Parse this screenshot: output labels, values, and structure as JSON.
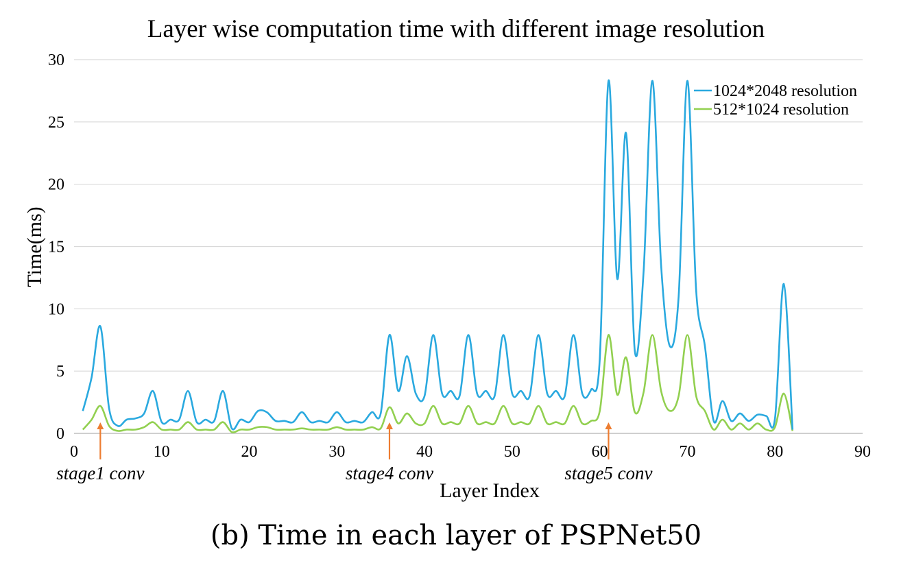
{
  "caption": "(b) Time in each layer of PSPNet50",
  "chart_data": {
    "type": "line",
    "title": "Layer wise computation time with different image resolution",
    "xlabel": "Layer Index",
    "ylabel": "Time(ms)",
    "xlim": [
      0,
      90
    ],
    "ylim": [
      0,
      30
    ],
    "xticks": [
      0,
      10,
      20,
      30,
      40,
      50,
      60,
      70,
      80,
      90
    ],
    "yticks": [
      0,
      5,
      10,
      15,
      20,
      25,
      30
    ],
    "grid": "horizontal",
    "legend_position": "top-right",
    "x": [
      1,
      2,
      3,
      4,
      5,
      6,
      7,
      8,
      9,
      10,
      11,
      12,
      13,
      14,
      15,
      16,
      17,
      18,
      19,
      20,
      21,
      22,
      23,
      24,
      25,
      26,
      27,
      28,
      29,
      30,
      31,
      32,
      33,
      34,
      35,
      36,
      37,
      38,
      39,
      40,
      41,
      42,
      43,
      44,
      45,
      46,
      47,
      48,
      49,
      50,
      51,
      52,
      53,
      54,
      55,
      56,
      57,
      58,
      59,
      60,
      61,
      62,
      63,
      64,
      65,
      66,
      67,
      68,
      69,
      70,
      71,
      72,
      73,
      74,
      75,
      76,
      77,
      78,
      79,
      80,
      81,
      82
    ],
    "series": [
      {
        "name": "1024*2048 resolution",
        "color": "#2aa9df",
        "values": [
          1.8,
          4.5,
          8.6,
          2.0,
          0.6,
          1.1,
          1.2,
          1.6,
          3.4,
          0.9,
          1.1,
          1.1,
          3.4,
          0.9,
          1.1,
          1.0,
          3.4,
          0.4,
          1.1,
          0.9,
          1.8,
          1.7,
          1.0,
          1.0,
          0.9,
          1.7,
          0.9,
          1.0,
          0.9,
          1.7,
          0.9,
          1.0,
          0.9,
          1.7,
          1.6,
          7.9,
          3.4,
          6.2,
          3.2,
          3.0,
          7.9,
          3.2,
          3.4,
          3.0,
          7.9,
          3.2,
          3.4,
          3.0,
          7.9,
          3.2,
          3.4,
          3.0,
          7.9,
          3.2,
          3.4,
          3.0,
          7.9,
          3.2,
          3.5,
          6.0,
          28.3,
          12.4,
          24.1,
          6.6,
          13.0,
          28.3,
          13.5,
          7.0,
          11.0,
          28.3,
          11.5,
          7.0,
          1.0,
          2.6,
          1.0,
          1.6,
          1.0,
          1.5,
          1.4,
          1.2,
          12.0,
          0.3
        ]
      },
      {
        "name": "512*1024 resolution",
        "color": "#92d050",
        "values": [
          0.3,
          1.1,
          2.2,
          0.6,
          0.2,
          0.3,
          0.3,
          0.5,
          0.9,
          0.3,
          0.3,
          0.3,
          0.9,
          0.3,
          0.3,
          0.3,
          0.9,
          0.1,
          0.3,
          0.3,
          0.5,
          0.5,
          0.3,
          0.3,
          0.3,
          0.4,
          0.3,
          0.3,
          0.3,
          0.5,
          0.3,
          0.3,
          0.3,
          0.5,
          0.4,
          2.1,
          0.8,
          1.6,
          0.8,
          0.8,
          2.2,
          0.8,
          0.9,
          0.8,
          2.2,
          0.8,
          0.9,
          0.8,
          2.2,
          0.8,
          0.9,
          0.8,
          2.2,
          0.8,
          0.9,
          0.8,
          2.2,
          0.8,
          1.0,
          1.8,
          7.9,
          3.1,
          6.1,
          1.7,
          3.3,
          7.9,
          3.4,
          1.8,
          3.0,
          7.9,
          3.0,
          1.8,
          0.3,
          1.1,
          0.3,
          0.8,
          0.3,
          0.8,
          0.3,
          0.5,
          3.2,
          0.2
        ]
      }
    ],
    "annotations": [
      {
        "text": "stage1 conv",
        "x": 3
      },
      {
        "text": "stage4 conv",
        "x": 36
      },
      {
        "text": "stage5 conv",
        "x": 61
      }
    ],
    "annotation_arrow_color": "#ed7d31"
  }
}
